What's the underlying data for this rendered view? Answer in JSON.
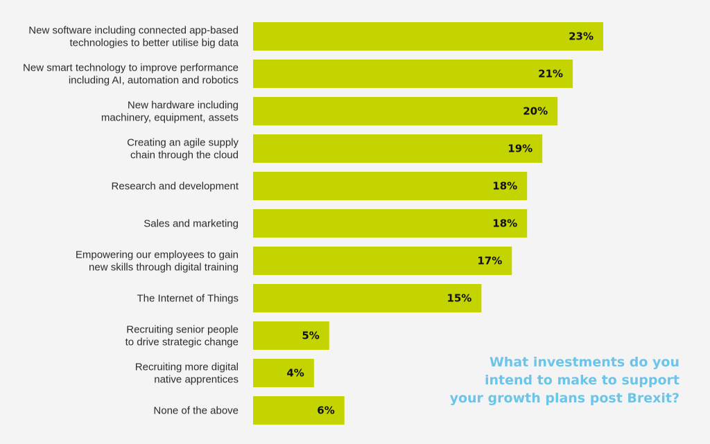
{
  "chart_data": {
    "type": "bar",
    "orientation": "horizontal",
    "title_lines": [
      "What investments do you",
      "intend to make to support",
      "your growth plans post Brexit?"
    ],
    "categories": [
      [
        "New software including connected app-based",
        "technologies to better utilise big data"
      ],
      [
        "New smart technology to improve performance",
        "including AI, automation and robotics"
      ],
      [
        "New hardware including",
        "machinery, equipment, assets"
      ],
      [
        "Creating an agile supply",
        "chain through the cloud"
      ],
      [
        "Research and development"
      ],
      [
        "Sales and marketing"
      ],
      [
        "Empowering our employees to gain",
        "new skills through digital training"
      ],
      [
        "The Internet of Things"
      ],
      [
        "Recruiting senior people",
        "to drive strategic change"
      ],
      [
        "Recruiting more digital",
        "native apprentices"
      ],
      [
        "None of the above"
      ]
    ],
    "values": [
      23,
      21,
      20,
      19,
      18,
      18,
      17,
      15,
      5,
      4,
      6
    ],
    "value_labels": [
      "23%",
      "21%",
      "20%",
      "19%",
      "18%",
      "18%",
      "17%",
      "15%",
      "5%",
      "4%",
      "6%"
    ],
    "unit": "%",
    "xlim": [
      0,
      23
    ],
    "grid": false,
    "legend": "none",
    "colors": {
      "bar": "#c3d400",
      "title": "#6cc5e9",
      "label": "#2b2b2b",
      "value": "#111111",
      "background": "#f4f4f4"
    }
  }
}
